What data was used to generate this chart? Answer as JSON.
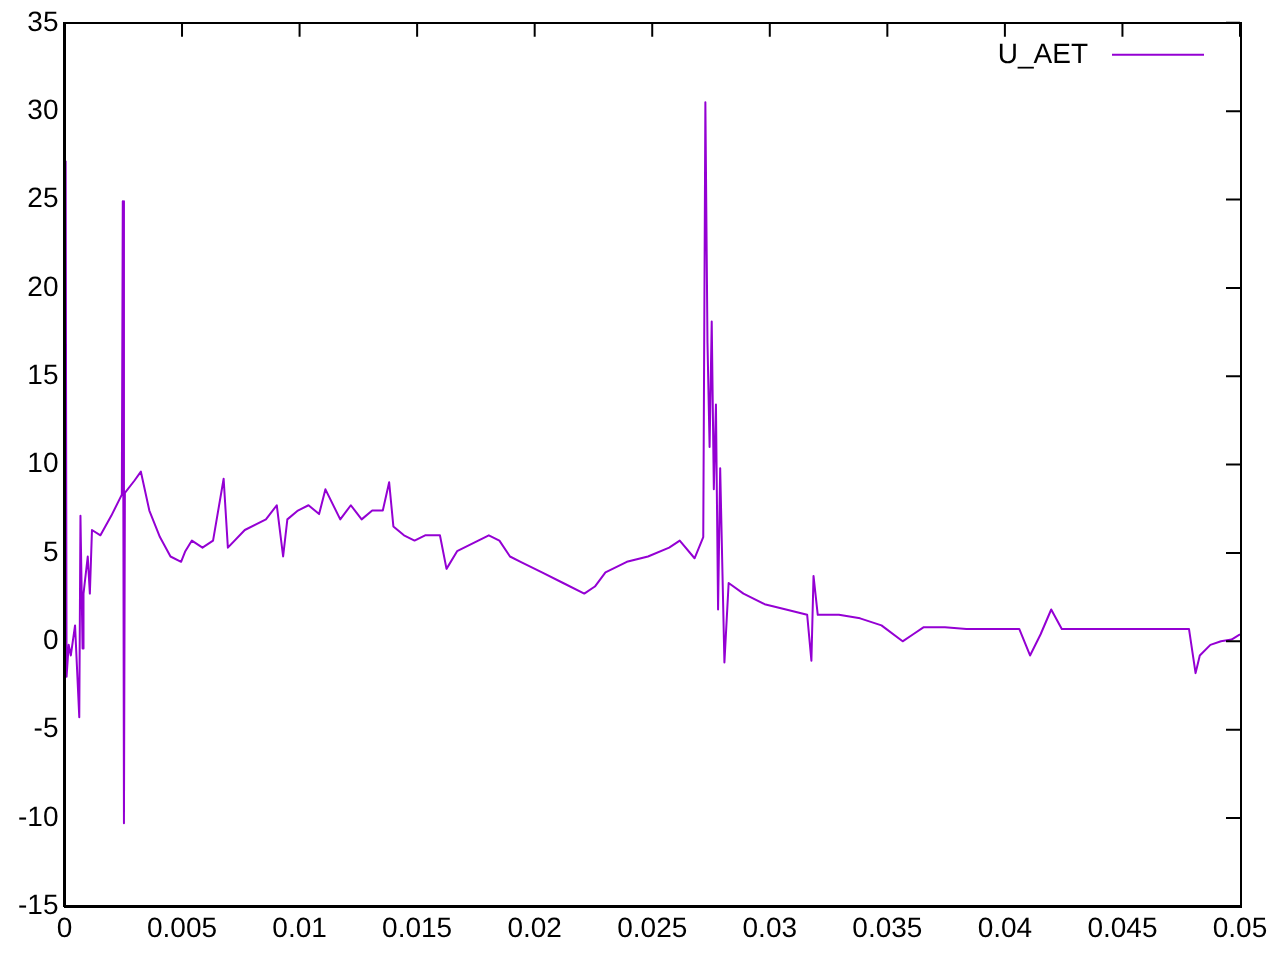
{
  "chart_data": {
    "type": "line",
    "legend": "top right",
    "marker": "none",
    "line_style": "solid",
    "grid": false,
    "xlim": [
      0,
      0.05
    ],
    "xticks": [
      0,
      0.005,
      0.01,
      0.015,
      0.02,
      0.025,
      0.03,
      0.035,
      0.04,
      0.045,
      0.05
    ],
    "ylim": [
      -15,
      35
    ],
    "yticks": [
      -15,
      -10,
      -5,
      0,
      5,
      10,
      15,
      20,
      25,
      30,
      35
    ],
    "x": [
      5e-05,
      9e-05,
      0.00018,
      0.00027,
      0.00045,
      0.00063,
      0.00068,
      0.00077,
      0.00081,
      0.00099,
      0.00108,
      0.00117,
      0.00153,
      0.00199,
      0.00244,
      0.00248,
      0.00253,
      0.00257,
      0.00298,
      0.00325,
      0.00361,
      0.00406,
      0.00451,
      0.00496,
      0.00514,
      0.00542,
      0.00587,
      0.00632,
      0.00677,
      0.00695,
      0.00767,
      0.00857,
      0.00903,
      0.0093,
      0.00948,
      0.00993,
      0.01038,
      0.01083,
      0.0111,
      0.01173,
      0.01218,
      0.01264,
      0.01309,
      0.01354,
      0.01381,
      0.01399,
      0.01444,
      0.01489,
      0.01534,
      0.01597,
      0.01625,
      0.0167,
      0.0176,
      0.01805,
      0.0185,
      0.01895,
      0.0194,
      0.02031,
      0.02121,
      0.02211,
      0.02256,
      0.02301,
      0.02392,
      0.02482,
      0.02572,
      0.02617,
      0.0268,
      0.02717,
      0.02726,
      0.02735,
      0.02744,
      0.02753,
      0.02762,
      0.02771,
      0.0278,
      0.02789,
      0.02807,
      0.02825,
      0.02888,
      0.02978,
      0.03069,
      0.03159,
      0.03177,
      0.03186,
      0.03204,
      0.03294,
      0.03384,
      0.03475,
      0.03565,
      0.0361,
      0.03655,
      0.03745,
      0.03836,
      0.03926,
      0.04016,
      0.04061,
      0.04107,
      0.04152,
      0.04197,
      0.04242,
      0.04377,
      0.04558,
      0.04783,
      0.04811,
      0.04829,
      0.04874,
      0.04919,
      0.04964,
      0.05
    ],
    "series": [
      {
        "name": "U_AET",
        "color": "#9400d3",
        "values": [
          27.2,
          -2.0,
          -0.2,
          -0.8,
          0.9,
          -4.3,
          7.1,
          -0.4,
          2.7,
          4.8,
          2.7,
          6.3,
          6.0,
          7.1,
          8.3,
          24.9,
          -10.3,
          8.4,
          9.1,
          9.6,
          7.4,
          5.9,
          4.8,
          4.5,
          5.1,
          5.7,
          5.3,
          5.7,
          9.2,
          5.3,
          6.3,
          6.9,
          7.7,
          4.8,
          6.9,
          7.4,
          7.7,
          7.2,
          8.6,
          6.9,
          7.7,
          6.9,
          7.4,
          7.4,
          9.0,
          6.5,
          6.0,
          5.7,
          6.0,
          6.0,
          4.1,
          5.1,
          5.7,
          6.0,
          5.7,
          4.8,
          4.5,
          3.9,
          3.3,
          2.7,
          3.1,
          3.9,
          4.5,
          4.8,
          5.3,
          5.7,
          4.7,
          5.9,
          30.5,
          16.9,
          11.0,
          18.1,
          8.6,
          13.4,
          1.8,
          9.8,
          -1.2,
          3.3,
          2.7,
          2.1,
          1.8,
          1.5,
          -1.1,
          3.7,
          1.5,
          1.5,
          1.3,
          0.9,
          0.0,
          0.4,
          0.8,
          0.8,
          0.7,
          0.7,
          0.7,
          0.7,
          -0.8,
          0.4,
          1.8,
          0.7,
          0.7,
          0.7,
          0.7,
          -1.8,
          -0.8,
          -0.2,
          0.0,
          0.1,
          0.4
        ]
      }
    ]
  }
}
